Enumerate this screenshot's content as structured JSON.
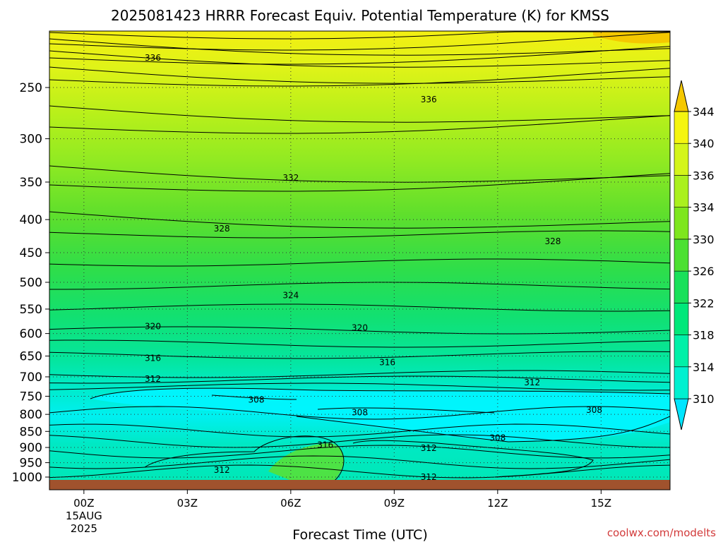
{
  "chart_data": {
    "type": "contour",
    "title": "2025081423 HRRR Forecast Equiv. Potential Temperature (K) for KMSS",
    "xlabel": "Forecast Time (UTC)",
    "ylabel": "",
    "credit": "coolwx.com/modelts",
    "y_axis": {
      "scale": "log-pressure",
      "units": "hPa",
      "inverted": true,
      "range": [
        1000,
        200
      ],
      "ticks": [
        "250",
        "300",
        "350",
        "400",
        "450",
        "500",
        "550",
        "600",
        "650",
        "700",
        "750",
        "800",
        "850",
        "900",
        "950",
        "1000"
      ],
      "grid": true
    },
    "x_axis": {
      "range_hours": [
        -1,
        17
      ],
      "ticks": [
        {
          "hour": 0,
          "label": "00Z",
          "sub1": "15AUG",
          "sub2": "2025"
        },
        {
          "hour": 3,
          "label": "03Z",
          "sub1": "",
          "sub2": ""
        },
        {
          "hour": 6,
          "label": "06Z",
          "sub1": "",
          "sub2": ""
        },
        {
          "hour": 9,
          "label": "09Z",
          "sub1": "",
          "sub2": ""
        },
        {
          "hour": 12,
          "label": "12Z",
          "sub1": "",
          "sub2": ""
        },
        {
          "hour": 15,
          "label": "15Z",
          "sub1": "",
          "sub2": ""
        }
      ],
      "grid": true
    },
    "colorbar": {
      "levels": [
        310,
        314,
        318,
        322,
        326,
        330,
        334,
        336,
        340,
        344
      ],
      "labels": [
        "310",
        "314",
        "318",
        "322",
        "326",
        "330",
        "334",
        "336",
        "340",
        "344"
      ],
      "colors": [
        "#00e5ff",
        "#00f0d0",
        "#00f0a8",
        "#00e87a",
        "#19e05a",
        "#4ce032",
        "#7ee61e",
        "#aaf01e",
        "#d4f51a",
        "#f5f50f",
        "#f5c800"
      ],
      "extend": "both"
    },
    "contour_labels": [
      {
        "value": "336",
        "hour": 2.0,
        "hpa": 225
      },
      {
        "value": "336",
        "hour": 10.0,
        "hpa": 261
      },
      {
        "value": "332",
        "hour": 6.0,
        "hpa": 345
      },
      {
        "value": "328",
        "hour": 4.0,
        "hpa": 413
      },
      {
        "value": "328",
        "hour": 13.6,
        "hpa": 432
      },
      {
        "value": "324",
        "hour": 6.0,
        "hpa": 524
      },
      {
        "value": "320",
        "hour": 2.0,
        "hpa": 585
      },
      {
        "value": "320",
        "hour": 8.0,
        "hpa": 588
      },
      {
        "value": "316",
        "hour": 2.0,
        "hpa": 655
      },
      {
        "value": "316",
        "hour": 8.8,
        "hpa": 665
      },
      {
        "value": "312",
        "hour": 2.0,
        "hpa": 705
      },
      {
        "value": "312",
        "hour": 13.0,
        "hpa": 714
      },
      {
        "value": "308",
        "hour": 5.0,
        "hpa": 760
      },
      {
        "value": "308",
        "hour": 8.0,
        "hpa": 795
      },
      {
        "value": "308",
        "hour": 14.8,
        "hpa": 788
      },
      {
        "value": "308",
        "hour": 12.0,
        "hpa": 870
      },
      {
        "value": "316",
        "hour": 7.0,
        "hpa": 892
      },
      {
        "value": "312",
        "hour": 10.0,
        "hpa": 902
      },
      {
        "value": "312",
        "hour": 4.0,
        "hpa": 975
      },
      {
        "value": "312",
        "hour": 10.0,
        "hpa": 1000
      }
    ],
    "legend": "right colorbar"
  }
}
